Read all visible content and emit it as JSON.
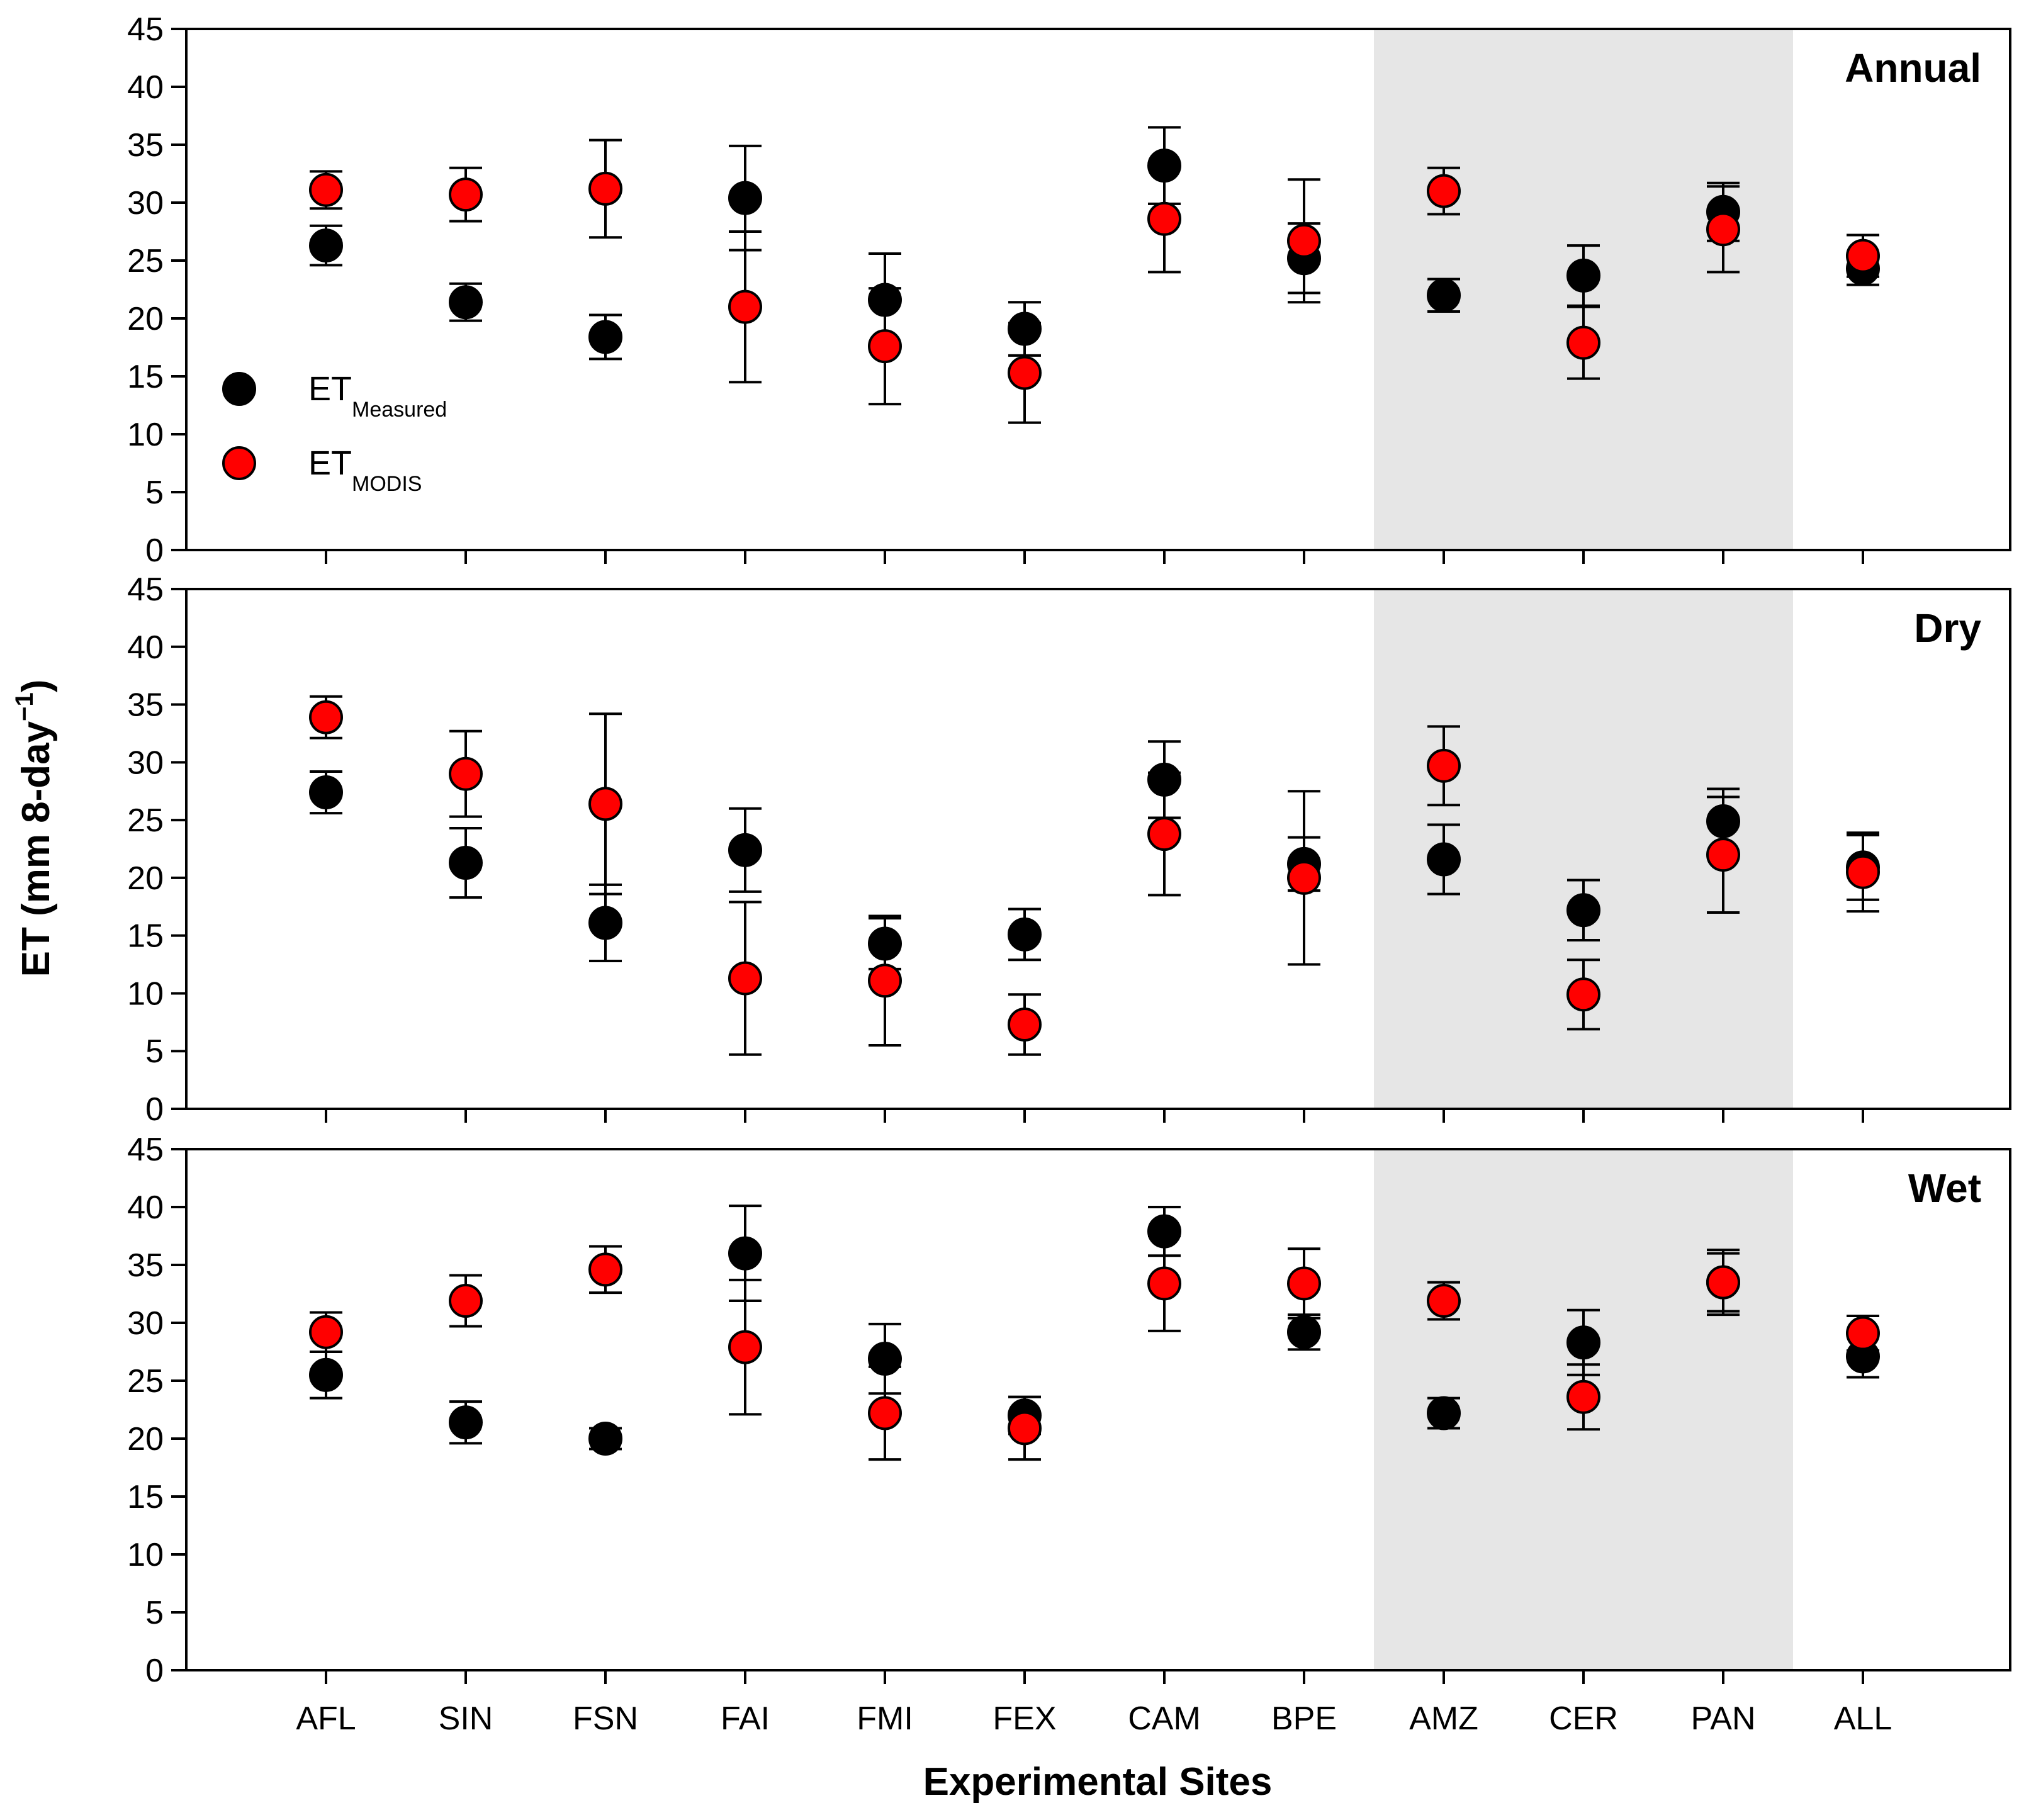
{
  "chart_data": {
    "type": "scatter",
    "xlabel": "Experimental Sites",
    "ylabel": "ET (mm 8-day",
    "ylabel_sup": "−1",
    "ylabel_close": ")",
    "ylim": [
      0,
      45
    ],
    "yticks": [
      "0",
      "5",
      "10",
      "15",
      "20",
      "25",
      "30",
      "35",
      "40",
      "45"
    ],
    "categories": [
      "AFL",
      "SIN",
      "FSN",
      "FAI",
      "FMI",
      "FEX",
      "CAM",
      "BPE",
      "AMZ",
      "CER",
      "PAN",
      "ALL"
    ],
    "shaded_categories": [
      "AMZ",
      "CER",
      "PAN"
    ],
    "colors": {
      "measured": "#000000",
      "modis": "#ff0000",
      "shade": "#e6e6e6"
    },
    "legend": {
      "measured": {
        "main": "ET",
        "sub": "Measured"
      },
      "modis": {
        "main": "ET",
        "sub": "MODIS"
      }
    },
    "panels": [
      {
        "title": "Annual",
        "series": [
          {
            "name": "Measured",
            "values": [
              26.3,
              21.4,
              18.4,
              30.4,
              21.6,
              19.1,
              33.2,
              25.2,
              22.0,
              23.7,
              29.2,
              24.3
            ],
            "err": [
              1.7,
              1.6,
              1.9,
              4.5,
              4.0,
              2.3,
              3.3,
              3.0,
              1.4,
              2.6,
              2.5,
              1.4
            ]
          },
          {
            "name": "MODIS",
            "values": [
              31.1,
              30.7,
              31.2,
              21.0,
              17.6,
              15.3,
              28.6,
              26.7,
              31.0,
              17.9,
              27.7,
              25.4
            ],
            "err": [
              1.6,
              2.3,
              4.2,
              6.5,
              5.0,
              4.3,
              4.6,
              5.3,
              2.0,
              3.1,
              3.7,
              1.8
            ]
          }
        ]
      },
      {
        "title": "Dry",
        "series": [
          {
            "name": "Measured",
            "values": [
              27.4,
              21.3,
              16.1,
              22.4,
              14.3,
              15.1,
              28.5,
              21.2,
              21.6,
              17.2,
              24.9,
              20.9
            ],
            "err": [
              1.8,
              3.0,
              3.3,
              3.6,
              2.2,
              2.2,
              3.3,
              2.3,
              3.0,
              2.6,
              2.8,
              2.8
            ]
          },
          {
            "name": "MODIS",
            "values": [
              33.9,
              29.0,
              26.4,
              11.3,
              11.1,
              7.3,
              23.8,
              20.0,
              29.7,
              9.9,
              22.0,
              20.5
            ],
            "err": [
              1.8,
              3.7,
              7.8,
              6.6,
              5.6,
              2.6,
              5.3,
              7.5,
              3.4,
              3.0,
              5.0,
              3.4
            ]
          }
        ]
      },
      {
        "title": "Wet",
        "series": [
          {
            "name": "Measured",
            "values": [
              25.5,
              21.4,
              20.0,
              36.0,
              26.9,
              22.0,
              37.9,
              29.2,
              22.2,
              28.3,
              33.5,
              27.1
            ],
            "err": [
              2.0,
              1.8,
              0.9,
              4.1,
              3.0,
              1.6,
              2.1,
              1.5,
              1.3,
              2.8,
              2.5,
              1.8
            ]
          },
          {
            "name": "MODIS",
            "values": [
              29.2,
              31.9,
              34.6,
              27.9,
              22.2,
              20.9,
              33.4,
              33.4,
              31.9,
              23.6,
              33.5,
              29.1
            ],
            "err": [
              1.7,
              2.2,
              2.0,
              5.8,
              4.0,
              2.7,
              4.1,
              3.0,
              1.6,
              2.8,
              2.8,
              1.5
            ]
          }
        ]
      }
    ]
  }
}
